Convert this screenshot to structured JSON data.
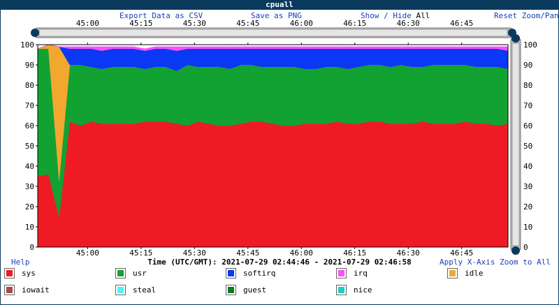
{
  "window": {
    "title": "cpuall"
  },
  "toolbar": {
    "export_csv": "Export Data as CSV",
    "save_png": "Save as PNG",
    "show": "Show",
    "separator": "/",
    "hide": "Hide",
    "all": "All",
    "reset": "Reset Zoom/Pan"
  },
  "footer": {
    "help": "Help",
    "time_range": "Time (UTC/GMT): 2021-07-29 02:44:46 - 2021-07-29 02:46:58",
    "apply_zoom": "Apply X-Axis Zoom to All"
  },
  "legend": [
    {
      "name": "sys",
      "color": "#ee1b24"
    },
    {
      "name": "usr",
      "color": "#11a231"
    },
    {
      "name": "softirq",
      "color": "#0a38f5"
    },
    {
      "name": "irq",
      "color": "#ff4ff7"
    },
    {
      "name": "idle",
      "color": "#f2a72e"
    },
    {
      "name": "iowait",
      "color": "#a84a4a"
    },
    {
      "name": "steal",
      "color": "#4ff5f5"
    },
    {
      "name": "guest",
      "color": "#0e7a1e"
    },
    {
      "name": "nice",
      "color": "#1ad0c8"
    }
  ],
  "chart_data": {
    "type": "area",
    "stacked": true,
    "title": "cpuall",
    "xlabel": "Time (UTC/GMT): 2021-07-29 02:44:46 - 2021-07-29 02:46:58",
    "x_range": [
      "02:44:46",
      "02:46:58"
    ],
    "x_ticks": [
      "45:00",
      "45:15",
      "45:30",
      "45:45",
      "46:00",
      "46:15",
      "46:30",
      "46:45"
    ],
    "ylim": [
      0,
      100
    ],
    "y_ticks": [
      0,
      10,
      20,
      30,
      40,
      50,
      60,
      70,
      80,
      90,
      100
    ],
    "y2_ticks": [
      0,
      10,
      20,
      30,
      40,
      50,
      60,
      70,
      80,
      90,
      100
    ],
    "x": [
      "02:44:46",
      "02:44:49",
      "02:44:52",
      "02:44:55",
      "02:44:58",
      "02:45:01",
      "02:45:04",
      "02:45:07",
      "02:45:10",
      "02:45:13",
      "02:45:16",
      "02:45:19",
      "02:45:22",
      "02:45:25",
      "02:45:28",
      "02:45:31",
      "02:45:34",
      "02:45:37",
      "02:45:40",
      "02:45:43",
      "02:45:46",
      "02:45:49",
      "02:45:52",
      "02:45:55",
      "02:45:58",
      "02:46:01",
      "02:46:04",
      "02:46:07",
      "02:46:10",
      "02:46:13",
      "02:46:16",
      "02:46:19",
      "02:46:22",
      "02:46:25",
      "02:46:28",
      "02:46:31",
      "02:46:34",
      "02:46:37",
      "02:46:40",
      "02:46:43",
      "02:46:46",
      "02:46:49",
      "02:46:52",
      "02:46:55",
      "02:46:58"
    ],
    "series": [
      {
        "name": "sys",
        "color": "#ee1b24",
        "values": [
          35,
          36,
          15,
          62,
          60,
          62,
          61,
          61,
          61,
          61,
          62,
          62,
          62,
          61,
          60,
          62,
          61,
          60,
          60,
          61,
          62,
          62,
          61,
          60,
          60,
          61,
          61,
          61,
          62,
          61,
          61,
          62,
          62,
          61,
          61,
          61,
          62,
          61,
          61,
          61,
          62,
          61,
          61,
          60,
          61
        ]
      },
      {
        "name": "usr",
        "color": "#11a231",
        "values": [
          63,
          62,
          18,
          28,
          30,
          27,
          27,
          28,
          28,
          28,
          26,
          27,
          27,
          26,
          30,
          27,
          28,
          29,
          28,
          29,
          28,
          27,
          28,
          29,
          29,
          27,
          27,
          28,
          27,
          27,
          28,
          28,
          28,
          28,
          29,
          28,
          27,
          29,
          29,
          29,
          28,
          28,
          28,
          29,
          27
        ]
      },
      {
        "name": "idle",
        "color": "#f2a72e",
        "values": [
          0,
          2,
          66,
          0,
          0,
          0,
          0,
          0,
          0,
          0,
          0,
          0,
          0,
          0,
          0,
          0,
          0,
          0,
          0,
          0,
          0,
          0,
          0,
          0,
          0,
          0,
          0,
          0,
          0,
          0,
          0,
          0,
          0,
          0,
          0,
          0,
          0,
          0,
          0,
          0,
          0,
          0,
          0,
          0,
          0
        ]
      },
      {
        "name": "softirq",
        "color": "#0a38f5",
        "values": [
          0,
          0,
          0,
          8,
          8,
          9,
          9,
          9,
          9,
          9,
          9,
          9,
          9,
          10,
          8,
          9,
          9,
          9,
          10,
          8,
          8,
          9,
          9,
          9,
          9,
          10,
          10,
          9,
          9,
          10,
          9,
          8,
          8,
          9,
          8,
          9,
          9,
          8,
          8,
          8,
          8,
          9,
          9,
          9,
          9
        ]
      },
      {
        "name": "irq",
        "color": "#ff4ff7",
        "values": [
          0,
          0,
          0,
          1,
          1,
          1,
          2,
          1,
          1,
          1,
          1,
          1,
          1,
          2,
          1,
          1,
          1,
          1,
          1,
          1,
          1,
          1,
          1,
          1,
          1,
          1,
          1,
          1,
          1,
          1,
          1,
          1,
          1,
          1,
          1,
          1,
          1,
          1,
          1,
          1,
          1,
          1,
          1,
          1,
          2
        ]
      }
    ]
  }
}
